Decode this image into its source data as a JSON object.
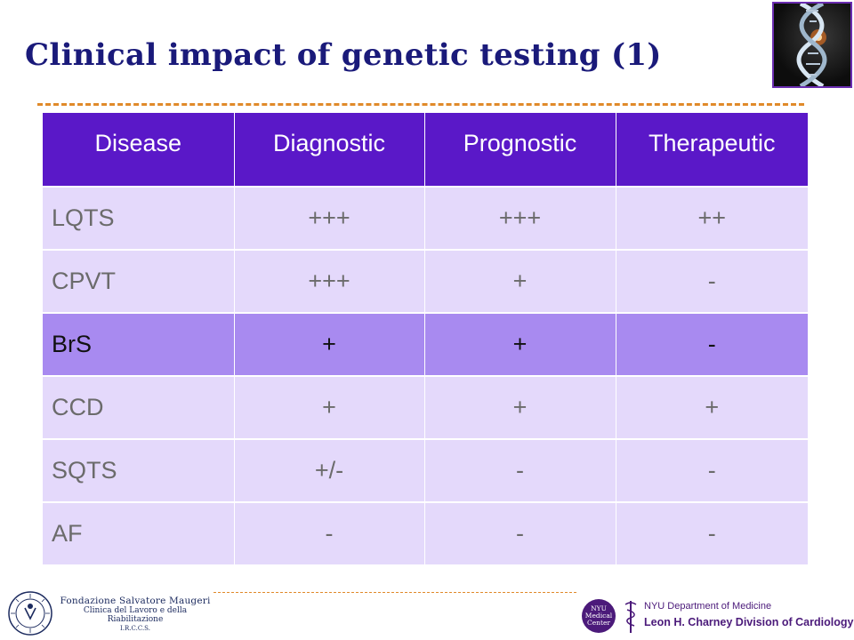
{
  "slide": {
    "title": "Clinical impact of genetic testing (1)"
  },
  "table": {
    "columns": [
      "Disease",
      "Diagnostic",
      "Prognostic",
      "Therapeutic"
    ],
    "rows": [
      {
        "disease": "LQTS",
        "diagnostic": "+++",
        "prognostic": "+++",
        "therapeutic": "++"
      },
      {
        "disease": "CPVT",
        "diagnostic": "+++",
        "prognostic": "+",
        "therapeutic": "-"
      },
      {
        "disease": "BrS",
        "diagnostic": "+",
        "prognostic": "+",
        "therapeutic": "-",
        "highlighted": true
      },
      {
        "disease": "CCD",
        "diagnostic": "+",
        "prognostic": "+",
        "therapeutic": "+"
      },
      {
        "disease": "SQTS",
        "diagnostic": "+/-",
        "prognostic": "-",
        "therapeutic": "-"
      },
      {
        "disease": "AF",
        "diagnostic": "-",
        "prognostic": "-",
        "therapeutic": "-"
      }
    ]
  },
  "footer": {
    "left_logo": {
      "line1": "Fondazione Salvatore Maugeri",
      "line2": "Clinica del Lavoro e della Riabilitazione",
      "line3": "I.R.C.C.S."
    },
    "right_logo": {
      "badge_line1": "NYU",
      "badge_line2": "Medical",
      "badge_line3": "Center",
      "department": "NYU Department of Medicine",
      "division": "Leon H. Charney Division of Cardiology"
    }
  },
  "colors": {
    "title": "#1a1a7a",
    "header_bg": "#5a18c8",
    "row_bg": "#e4d9fb",
    "highlight_bg": "#a88af0",
    "divider": "#e08a2a",
    "nyu_purple": "#4b1a7a"
  },
  "icons": {
    "title_image": "dna-helix-image",
    "left_logo_seal": "maugeri-seal-icon",
    "right_logo_symbol": "caduceus-icon"
  }
}
